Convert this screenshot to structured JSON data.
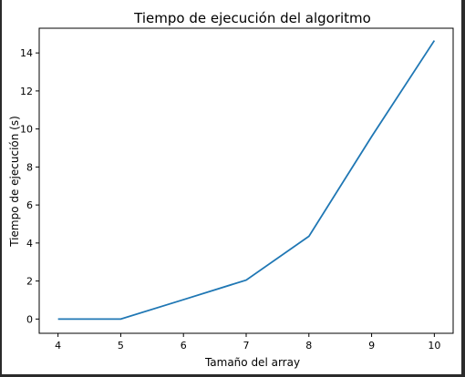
{
  "chart_data": {
    "type": "line",
    "title": "Tiempo de ejecución del algoritmo",
    "xlabel": "Tamaño del array",
    "ylabel": "Tiempo de ejecución (s)",
    "x": [
      4,
      5,
      6,
      7,
      8,
      9,
      10
    ],
    "xticks": [
      4,
      5,
      6,
      7,
      8,
      9,
      10
    ],
    "yticks": [
      0,
      2,
      4,
      6,
      8,
      10,
      12,
      14
    ],
    "xlim": [
      3.7,
      10.3
    ],
    "ylim": [
      -0.75,
      15.3
    ],
    "series": [
      {
        "values": [
          0.0,
          0.0,
          1.02,
          2.05,
          4.35,
          9.6,
          14.65
        ],
        "color": "#1f77b4"
      }
    ],
    "grid": false
  }
}
